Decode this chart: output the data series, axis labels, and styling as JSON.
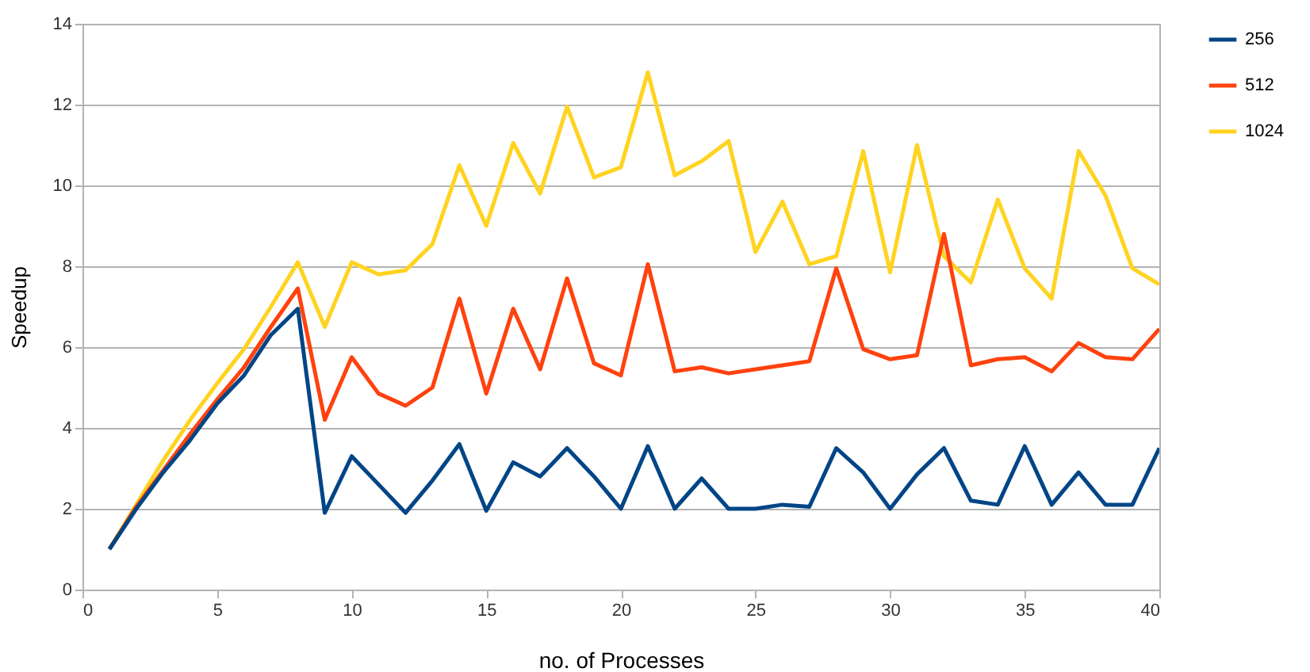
{
  "chart_data": {
    "type": "line",
    "xlabel": "no. of Processes",
    "ylabel": "Speedup",
    "x": [
      1,
      2,
      3,
      4,
      5,
      6,
      7,
      8,
      9,
      10,
      11,
      12,
      13,
      14,
      15,
      16,
      17,
      18,
      19,
      20,
      21,
      22,
      23,
      24,
      25,
      26,
      27,
      28,
      29,
      30,
      31,
      32,
      33,
      34,
      35,
      36,
      37,
      38,
      39,
      40
    ],
    "series": [
      {
        "name": "256",
        "color": "#004586",
        "values": [
          1,
          2.0,
          2.9,
          3.7,
          4.6,
          5.3,
          6.3,
          6.95,
          1.9,
          3.3,
          2.6,
          1.9,
          2.7,
          3.6,
          1.95,
          3.15,
          2.8,
          3.5,
          2.8,
          2.0,
          3.55,
          2.0,
          2.75,
          2.0,
          2.0,
          2.1,
          2.05,
          3.5,
          2.9,
          2.0,
          2.85,
          3.5,
          2.2,
          2.1,
          3.55,
          2.1,
          2.9,
          2.1,
          2.1,
          3.5
        ]
      },
      {
        "name": "512",
        "color": "#ff420e",
        "values": [
          1,
          2.05,
          2.95,
          3.85,
          4.7,
          5.5,
          6.5,
          7.45,
          4.2,
          5.75,
          4.85,
          4.55,
          5.0,
          7.2,
          4.85,
          6.95,
          5.45,
          7.7,
          5.6,
          5.3,
          8.05,
          5.4,
          5.5,
          5.35,
          5.45,
          5.55,
          5.65,
          7.95,
          5.95,
          5.7,
          5.8,
          8.8,
          5.55,
          5.7,
          5.75,
          5.4,
          6.1,
          5.75,
          5.7,
          6.45
        ]
      },
      {
        "name": "1024",
        "color": "#ffd320",
        "values": [
          1,
          2.1,
          3.2,
          4.2,
          5.1,
          5.95,
          7.0,
          8.1,
          6.5,
          8.1,
          7.8,
          7.9,
          8.55,
          10.5,
          9.0,
          11.05,
          9.8,
          11.95,
          10.2,
          10.45,
          12.8,
          10.25,
          10.6,
          11.1,
          8.35,
          9.6,
          8.05,
          8.25,
          10.85,
          7.85,
          11.0,
          8.25,
          7.6,
          9.65,
          7.95,
          7.2,
          10.85,
          9.75,
          7.95,
          7.55
        ]
      }
    ],
    "xlim": [
      0,
      40
    ],
    "xticks": [
      0,
      5,
      10,
      15,
      20,
      25,
      30,
      35,
      40
    ],
    "ylim": [
      0,
      14
    ],
    "yticks": [
      0,
      2,
      4,
      6,
      8,
      10,
      12,
      14
    ],
    "grid": "y",
    "legend": "right",
    "marker": "none",
    "line_style": "solid"
  }
}
